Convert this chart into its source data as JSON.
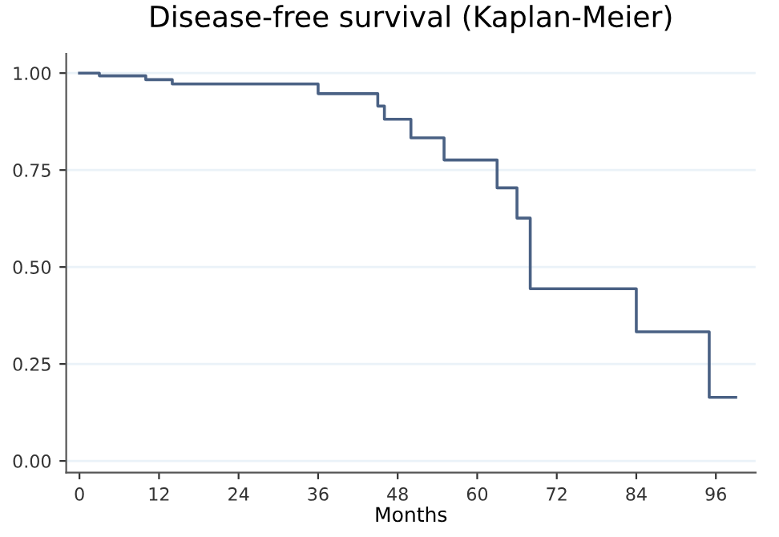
{
  "chart_data": {
    "type": "step",
    "title": "Disease-free survival (Kaplan-Meier)",
    "xlabel": "Months",
    "x": [
      0,
      3,
      10,
      14,
      36,
      45,
      46,
      50,
      55,
      63,
      66,
      68,
      84,
      95,
      99
    ],
    "series": [
      {
        "color": "#4a6184",
        "values": [
          1.0,
          0.993,
          0.983,
          0.972,
          0.947,
          0.915,
          0.881,
          0.833,
          0.776,
          0.704,
          0.626,
          0.444,
          0.333,
          0.164,
          0.164
        ]
      }
    ],
    "xlim": [
      -2,
      102
    ],
    "ylim": [
      -0.03,
      1.05
    ],
    "xticks": [
      0,
      12,
      24,
      36,
      48,
      60,
      72,
      84,
      96
    ],
    "yticks": [
      {
        "value": 0,
        "label": "0.00"
      },
      {
        "value": 0.25,
        "label": "0.25"
      },
      {
        "value": 0.5,
        "label": "0.50"
      },
      {
        "value": 0.75,
        "label": "0.75"
      },
      {
        "value": 1,
        "label": "1.00"
      }
    ],
    "grid": "y",
    "line_style": "solid"
  }
}
